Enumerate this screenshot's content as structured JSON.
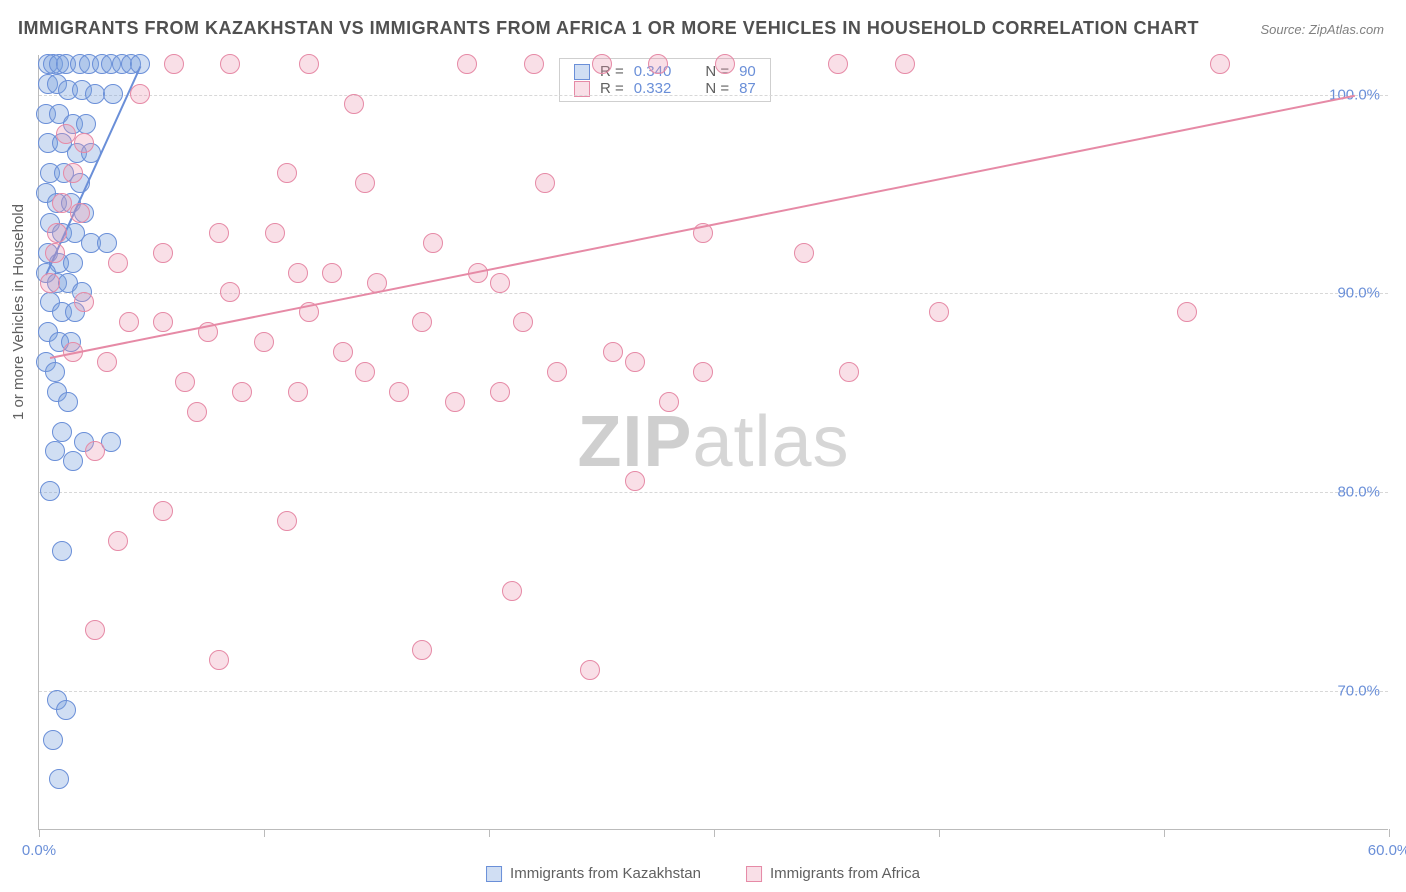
{
  "title": "IMMIGRANTS FROM KAZAKHSTAN VS IMMIGRANTS FROM AFRICA 1 OR MORE VEHICLES IN HOUSEHOLD CORRELATION CHART",
  "source": "Source: ZipAtlas.com",
  "watermark_zip": "ZIP",
  "watermark_atlas": "atlas",
  "yaxis_label": "1 or more Vehicles in Household",
  "chart": {
    "type": "scatter",
    "background_color": "#ffffff",
    "grid_color": "#d8d8d8",
    "axis_color": "#bbbbbb",
    "tick_label_color": "#6a8fd8",
    "xlim": [
      0,
      60
    ],
    "ylim": [
      63,
      102
    ],
    "xticks": [
      0,
      10,
      20,
      30,
      40,
      50,
      60
    ],
    "xtick_labels": [
      "0.0%",
      "",
      "",
      "",
      "",
      "",
      "60.0%"
    ],
    "yticks": [
      70,
      80,
      90,
      100
    ],
    "ytick_labels": [
      "70.0%",
      "80.0%",
      "90.0%",
      "100.0%"
    ],
    "marker_radius": 10,
    "marker_border_width": 1.3,
    "trend_line_width": 2
  },
  "series": [
    {
      "name": "Immigrants from Kazakhstan",
      "key": "kazakhstan",
      "fill_color": "rgba(120,160,220,0.35)",
      "stroke_color": "#6a8fd8",
      "R": "0.340",
      "N": "90",
      "trend": {
        "x1": 0.3,
        "y1": 91.0,
        "x2": 4.5,
        "y2": 101.5
      },
      "points": [
        [
          0.4,
          101.5
        ],
        [
          0.6,
          101.5
        ],
        [
          0.9,
          101.5
        ],
        [
          1.2,
          101.5
        ],
        [
          1.8,
          101.5
        ],
        [
          2.2,
          101.5
        ],
        [
          2.8,
          101.5
        ],
        [
          3.2,
          101.5
        ],
        [
          3.7,
          101.5
        ],
        [
          4.1,
          101.5
        ],
        [
          4.5,
          101.5
        ],
        [
          0.4,
          100.5
        ],
        [
          0.8,
          100.5
        ],
        [
          1.3,
          100.2
        ],
        [
          1.9,
          100.2
        ],
        [
          2.5,
          100.0
        ],
        [
          3.3,
          100.0
        ],
        [
          0.3,
          99.0
        ],
        [
          0.9,
          99.0
        ],
        [
          1.5,
          98.5
        ],
        [
          2.1,
          98.5
        ],
        [
          0.4,
          97.5
        ],
        [
          1.0,
          97.5
        ],
        [
          1.7,
          97.0
        ],
        [
          2.3,
          97.0
        ],
        [
          0.5,
          96.0
        ],
        [
          1.1,
          96.0
        ],
        [
          1.8,
          95.5
        ],
        [
          0.3,
          95.0
        ],
        [
          0.8,
          94.5
        ],
        [
          1.4,
          94.5
        ],
        [
          2.0,
          94.0
        ],
        [
          0.5,
          93.5
        ],
        [
          1.0,
          93.0
        ],
        [
          1.6,
          93.0
        ],
        [
          2.3,
          92.5
        ],
        [
          3.0,
          92.5
        ],
        [
          0.4,
          92.0
        ],
        [
          0.9,
          91.5
        ],
        [
          1.5,
          91.5
        ],
        [
          0.3,
          91.0
        ],
        [
          0.8,
          90.5
        ],
        [
          1.3,
          90.5
        ],
        [
          1.9,
          90.0
        ],
        [
          0.5,
          89.5
        ],
        [
          1.0,
          89.0
        ],
        [
          1.6,
          89.0
        ],
        [
          0.4,
          88.0
        ],
        [
          0.9,
          87.5
        ],
        [
          1.4,
          87.5
        ],
        [
          0.3,
          86.5
        ],
        [
          0.7,
          86.0
        ],
        [
          0.8,
          85.0
        ],
        [
          1.3,
          84.5
        ],
        [
          1.0,
          83.0
        ],
        [
          2.0,
          82.5
        ],
        [
          3.2,
          82.5
        ],
        [
          0.7,
          82.0
        ],
        [
          1.5,
          81.5
        ],
        [
          0.5,
          80.0
        ],
        [
          1.0,
          77.0
        ],
        [
          0.8,
          69.5
        ],
        [
          1.2,
          69.0
        ],
        [
          0.6,
          67.5
        ],
        [
          0.9,
          65.5
        ]
      ]
    },
    {
      "name": "Immigrants from Africa",
      "key": "africa",
      "fill_color": "rgba(235,150,175,0.30)",
      "stroke_color": "#e68aa6",
      "R": "0.332",
      "N": "87",
      "trend": {
        "x1": 0.5,
        "y1": 86.8,
        "x2": 58.5,
        "y2": 100.0
      },
      "points": [
        [
          6.0,
          101.5
        ],
        [
          8.5,
          101.5
        ],
        [
          12.0,
          101.5
        ],
        [
          19.0,
          101.5
        ],
        [
          22.0,
          101.5
        ],
        [
          25.0,
          101.5
        ],
        [
          27.5,
          101.5
        ],
        [
          30.5,
          101.5
        ],
        [
          35.5,
          101.5
        ],
        [
          38.5,
          101.5
        ],
        [
          52.5,
          101.5
        ],
        [
          4.5,
          100.0
        ],
        [
          14.0,
          99.5
        ],
        [
          1.2,
          98.0
        ],
        [
          2.0,
          97.5
        ],
        [
          1.5,
          96.0
        ],
        [
          11.0,
          96.0
        ],
        [
          14.5,
          95.5
        ],
        [
          22.5,
          95.5
        ],
        [
          1.0,
          94.5
        ],
        [
          1.8,
          94.0
        ],
        [
          0.8,
          93.0
        ],
        [
          8.0,
          93.0
        ],
        [
          10.5,
          93.0
        ],
        [
          17.5,
          92.5
        ],
        [
          29.5,
          93.0
        ],
        [
          34.0,
          92.0
        ],
        [
          0.7,
          92.0
        ],
        [
          3.5,
          91.5
        ],
        [
          5.5,
          92.0
        ],
        [
          11.5,
          91.0
        ],
        [
          13.0,
          91.0
        ],
        [
          19.5,
          91.0
        ],
        [
          20.5,
          90.5
        ],
        [
          0.5,
          90.5
        ],
        [
          8.5,
          90.0
        ],
        [
          15.0,
          90.5
        ],
        [
          2.0,
          89.5
        ],
        [
          12.0,
          89.0
        ],
        [
          40.0,
          89.0
        ],
        [
          51.0,
          89.0
        ],
        [
          4.0,
          88.5
        ],
        [
          5.5,
          88.5
        ],
        [
          17.0,
          88.5
        ],
        [
          21.5,
          88.5
        ],
        [
          7.5,
          88.0
        ],
        [
          10.0,
          87.5
        ],
        [
          1.5,
          87.0
        ],
        [
          13.5,
          87.0
        ],
        [
          25.5,
          87.0
        ],
        [
          26.5,
          86.5
        ],
        [
          3.0,
          86.5
        ],
        [
          14.5,
          86.0
        ],
        [
          23.0,
          86.0
        ],
        [
          29.5,
          86.0
        ],
        [
          36.0,
          86.0
        ],
        [
          6.5,
          85.5
        ],
        [
          9.0,
          85.0
        ],
        [
          16.0,
          85.0
        ],
        [
          20.5,
          85.0
        ],
        [
          11.5,
          85.0
        ],
        [
          18.5,
          84.5
        ],
        [
          28.0,
          84.5
        ],
        [
          7.0,
          84.0
        ],
        [
          2.5,
          82.0
        ],
        [
          26.5,
          80.5
        ],
        [
          5.5,
          79.0
        ],
        [
          11.0,
          78.5
        ],
        [
          3.5,
          77.5
        ],
        [
          21.0,
          75.0
        ],
        [
          2.5,
          73.0
        ],
        [
          17.0,
          72.0
        ],
        [
          8.0,
          71.5
        ],
        [
          24.5,
          71.0
        ]
      ]
    }
  ],
  "legend_labels": {
    "R_prefix": "R = ",
    "N_prefix": "N = "
  }
}
